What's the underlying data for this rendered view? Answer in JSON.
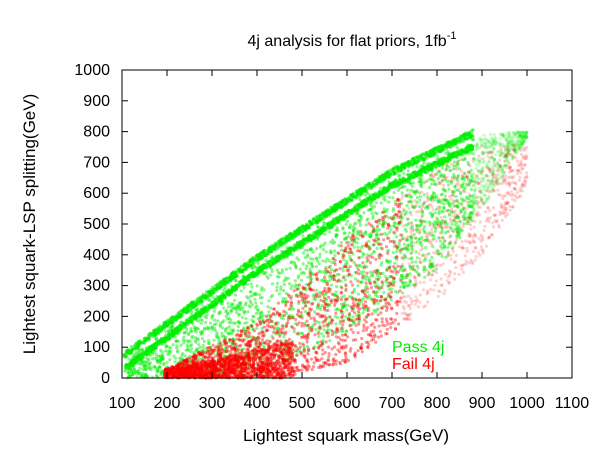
{
  "chart_data": {
    "type": "scatter",
    "title": "4j analysis for flat priors, 1fb",
    "title_superscript": "-1",
    "xlabel": "Lightest squark mass(GeV)",
    "ylabel": "Lightest squark-LSP splitting(GeV)",
    "xlim": [
      100,
      1100
    ],
    "ylim": [
      0,
      1000
    ],
    "x_ticks": [
      "100",
      "200",
      "300",
      "400",
      "500",
      "600",
      "700",
      "800",
      "900",
      "1000",
      "1100"
    ],
    "y_ticks": [
      "0",
      "100",
      "200",
      "300",
      "400",
      "500",
      "600",
      "700",
      "800",
      "900",
      "1000"
    ],
    "grid": false,
    "legend_position": "inside-bottom-right",
    "series": [
      {
        "name": "Pass 4j",
        "color": "#00ee00",
        "region": {
          "upper_bound": [
            [
              100,
              80
            ],
            [
              400,
              400
            ],
            [
              700,
              680
            ],
            [
              900,
              820
            ],
            [
              980,
              830
            ]
          ],
          "lower_bound": [
            [
              130,
              0
            ],
            [
              400,
              0
            ],
            [
              600,
              150
            ],
            [
              800,
              350
            ],
            [
              900,
              550
            ],
            [
              1000,
              780
            ]
          ],
          "dense_x_max": 880,
          "points_per_band": 1400
        }
      },
      {
        "name": "Fail 4j",
        "color": "#ff0000",
        "region": {
          "upper_bound": [
            [
              200,
              30
            ],
            [
              400,
              180
            ],
            [
              600,
              450
            ],
            [
              800,
              680
            ],
            [
              900,
              760
            ]
          ],
          "lower_bound": [
            [
              200,
              0
            ],
            [
              450,
              0
            ],
            [
              600,
              50
            ],
            [
              800,
              250
            ],
            [
              900,
              400
            ],
            [
              1000,
              620
            ]
          ],
          "dense_x_max": 720,
          "points": 2200
        }
      }
    ]
  }
}
